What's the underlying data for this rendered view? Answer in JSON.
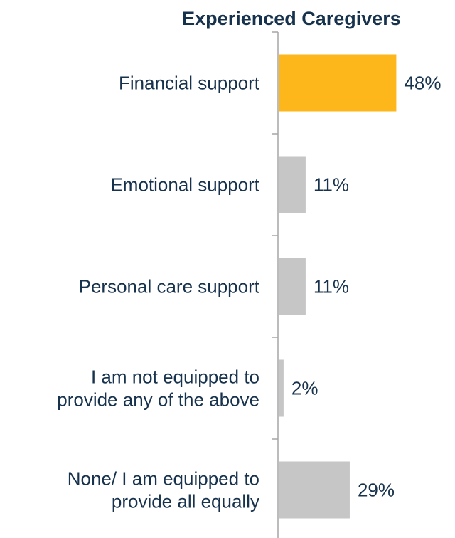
{
  "chart_data": {
    "type": "bar",
    "orientation": "horizontal",
    "title": "Experienced Caregivers",
    "categories": [
      [
        "Financial support"
      ],
      [
        "Emotional support"
      ],
      [
        "Personal care support"
      ],
      [
        "I am not equipped to",
        "provide any of the above"
      ],
      [
        "None/ I am equipped to",
        "provide all equally"
      ]
    ],
    "values": [
      48,
      11,
      11,
      2,
      29
    ],
    "value_labels": [
      "48%",
      "11%",
      "11%",
      "2%",
      "29%"
    ],
    "unit": "%",
    "xlim": [
      0,
      65
    ],
    "grid": false,
    "legend": "none"
  },
  "colors": {
    "highlight_bar": "#FDB71A",
    "other_bars": "#C6C6C6",
    "text": "#17324D",
    "axis": "#A6A6A6"
  }
}
